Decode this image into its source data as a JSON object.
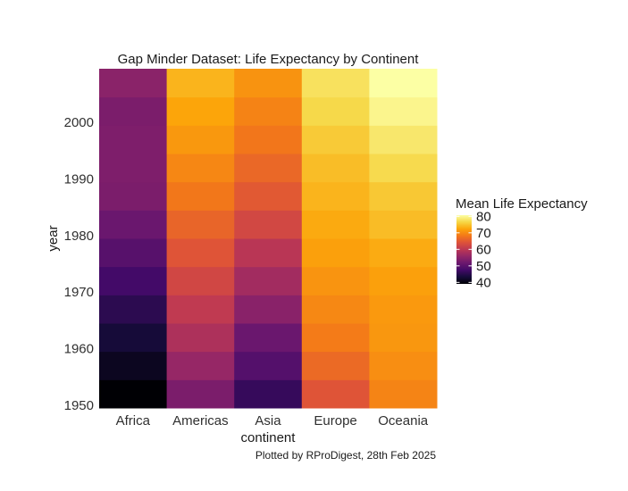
{
  "chart_data": {
    "type": "heatmap",
    "title": "Gap Minder Dataset: Life Expectancy by Continent",
    "xlabel": "continent",
    "ylabel": "year",
    "caption": "Plotted by RProDigest, 28th Feb 2025",
    "categories": [
      "Africa",
      "Americas",
      "Asia",
      "Europe",
      "Oceania"
    ],
    "years": [
      1952,
      1957,
      1962,
      1967,
      1972,
      1977,
      1982,
      1987,
      1992,
      1997,
      2002,
      2007
    ],
    "y_ticks": [
      1950,
      1960,
      1970,
      1980,
      1990,
      2000
    ],
    "ylim": [
      1949.5,
      2009.5
    ],
    "values": [
      [
        39.1,
        41.3,
        43.3,
        45.3,
        47.5,
        49.6,
        51.6,
        53.3,
        53.6,
        53.6,
        53.3,
        54.8
      ],
      [
        53.3,
        56.0,
        58.4,
        60.4,
        62.4,
        64.4,
        66.2,
        68.1,
        69.6,
        71.2,
        72.4,
        73.6
      ],
      [
        46.3,
        49.3,
        51.6,
        54.7,
        57.3,
        59.6,
        62.6,
        64.9,
        66.5,
        68.0,
        69.2,
        70.7
      ],
      [
        64.4,
        66.7,
        68.5,
        69.7,
        70.8,
        71.9,
        72.8,
        73.6,
        74.4,
        75.5,
        76.7,
        77.6
      ],
      [
        69.3,
        70.3,
        71.1,
        71.3,
        71.9,
        72.9,
        74.3,
        75.3,
        76.9,
        78.2,
        79.7,
        80.7
      ]
    ],
    "legend": {
      "title": "Mean Life Expectancy",
      "position": "right",
      "ticks": [
        "80",
        "70",
        "60",
        "50",
        "40"
      ],
      "tick_values": [
        80,
        70,
        60,
        50,
        40
      ],
      "range": [
        39.1,
        80.7
      ]
    },
    "palette": "inferno",
    "grid": false
  }
}
